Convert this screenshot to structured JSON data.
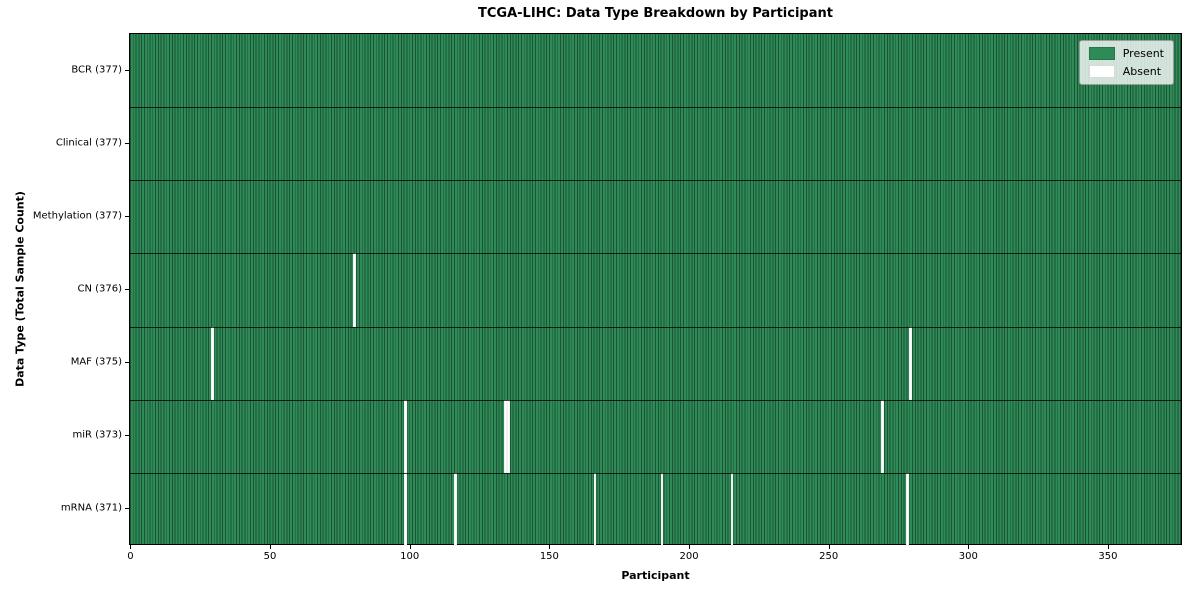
{
  "chart_data": {
    "type": "heatmap",
    "title": "TCGA-LIHC: Data Type Breakdown by Participant",
    "xlabel": "Participant",
    "ylabel": "Data Type (Total Sample Count)",
    "n_participants": 377,
    "x_ticks": [
      0,
      50,
      100,
      150,
      200,
      250,
      300,
      350
    ],
    "xlim": [
      0,
      377
    ],
    "grid": false,
    "legend_position": "upper right",
    "rows": [
      {
        "label": "BCR (377)",
        "data_type": "BCR",
        "total": 377,
        "absent_participants": []
      },
      {
        "label": "Clinical (377)",
        "data_type": "Clinical",
        "total": 377,
        "absent_participants": []
      },
      {
        "label": "Methylation (377)",
        "data_type": "Methylation",
        "total": 377,
        "absent_participants": []
      },
      {
        "label": "CN (376)",
        "data_type": "CN",
        "total": 376,
        "absent_participants": [
          80
        ]
      },
      {
        "label": "MAF (375)",
        "data_type": "MAF",
        "total": 375,
        "absent_participants": [
          29,
          279
        ]
      },
      {
        "label": "miR (373)",
        "data_type": "miR",
        "total": 373,
        "absent_participants": [
          98,
          134,
          135,
          269
        ]
      },
      {
        "label": "mRNA (371)",
        "data_type": "mRNA",
        "total": 371,
        "absent_participants": [
          98,
          116,
          166,
          190,
          215,
          278
        ]
      }
    ],
    "legend": [
      {
        "label": "Present",
        "color": "#2e8b57"
      },
      {
        "label": "Absent",
        "color": "#ffffff"
      }
    ],
    "colors": {
      "present": "#2e8b57",
      "absent": "#ffffff",
      "cell_edge": "rgba(0,0,0,0.40)",
      "row_divider": "rgba(0,0,0,0.75)",
      "spine": "#000000"
    }
  }
}
